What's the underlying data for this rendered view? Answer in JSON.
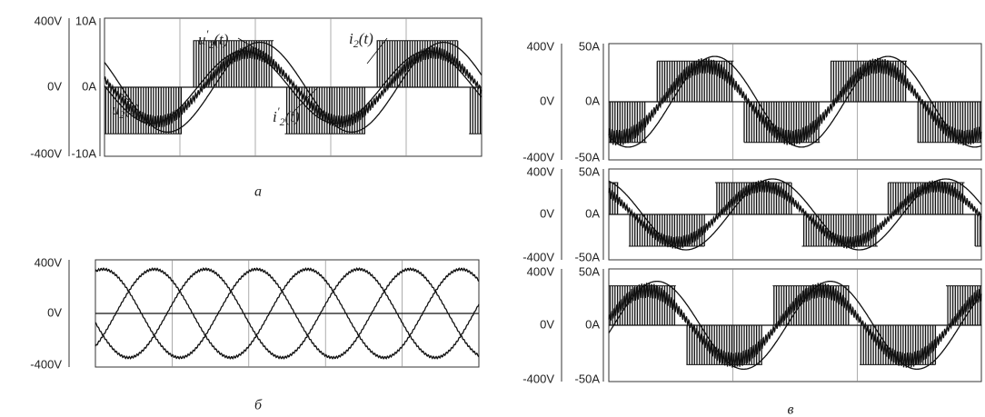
{
  "chart_data": [
    {
      "id": "a",
      "type": "line",
      "panel_label": "а",
      "y_left_ticks": [
        "400V",
        "0V",
        "-400V"
      ],
      "y_right_ticks": [
        "10A",
        "0A",
        "-10A"
      ],
      "ylim_voltage": [
        -400,
        400
      ],
      "ylim_current": [
        -10,
        10
      ],
      "grid": "vertical",
      "series": [
        {
          "name": "u2(t)",
          "kind": "pwm",
          "amplitude_v": 270
        },
        {
          "name": "u'2(t)",
          "kind": "sine",
          "amplitude_v": 210
        },
        {
          "name": "i2(t)",
          "kind": "sine",
          "amplitude_a": 6.5
        },
        {
          "name": "i'2(t)",
          "kind": "ripple",
          "amplitude_a": 5
        }
      ],
      "annotations": [
        {
          "base": "u",
          "prime": "′",
          "sub": "2",
          "tail": "(t)"
        },
        {
          "base": "i",
          "prime": "",
          "sub": "2",
          "tail": "(t)"
        },
        {
          "base": "u",
          "prime": "",
          "sub": "2",
          "tail": "(t)"
        },
        {
          "base": "i",
          "prime": "′",
          "sub": "2",
          "tail": "(t)"
        }
      ]
    },
    {
      "id": "b",
      "type": "line",
      "panel_label": "б",
      "y_left_ticks": [
        "400V",
        "0V",
        "-400V"
      ],
      "ylim": [
        -400,
        400
      ],
      "grid": "vertical",
      "series": [
        {
          "phase_deg": 0,
          "amplitude_v": 330
        },
        {
          "phase_deg": 120,
          "amplitude_v": 330
        },
        {
          "phase_deg": 240,
          "amplitude_v": 330
        }
      ]
    },
    {
      "id": "v1",
      "type": "line",
      "y_left_ticks": [
        "400V",
        "0V",
        "-400V"
      ],
      "y_right_ticks": [
        "50A",
        "0A",
        "-50A"
      ],
      "ylim_voltage": [
        -400,
        400
      ],
      "ylim_current": [
        -50,
        50
      ],
      "phase_deg": 0
    },
    {
      "id": "v2",
      "type": "line",
      "y_left_ticks": [
        "400V",
        "0V",
        "-400V"
      ],
      "y_right_ticks": [
        "50A",
        "0A",
        "-50A"
      ],
      "ylim_voltage": [
        -400,
        400
      ],
      "ylim_current": [
        -50,
        50
      ],
      "phase_deg": -120
    },
    {
      "id": "v3",
      "type": "line",
      "panel_label": "в",
      "y_left_ticks": [
        "400V",
        "0V",
        "-400V"
      ],
      "y_right_ticks": [
        "50A",
        "0A",
        "-50A"
      ],
      "ylim_voltage": [
        -400,
        400
      ],
      "ylim_current": [
        -50,
        50
      ],
      "phase_deg": 120
    }
  ],
  "colors": {
    "trace": "#111111",
    "grid": "#888888",
    "frame": "#333333"
  }
}
